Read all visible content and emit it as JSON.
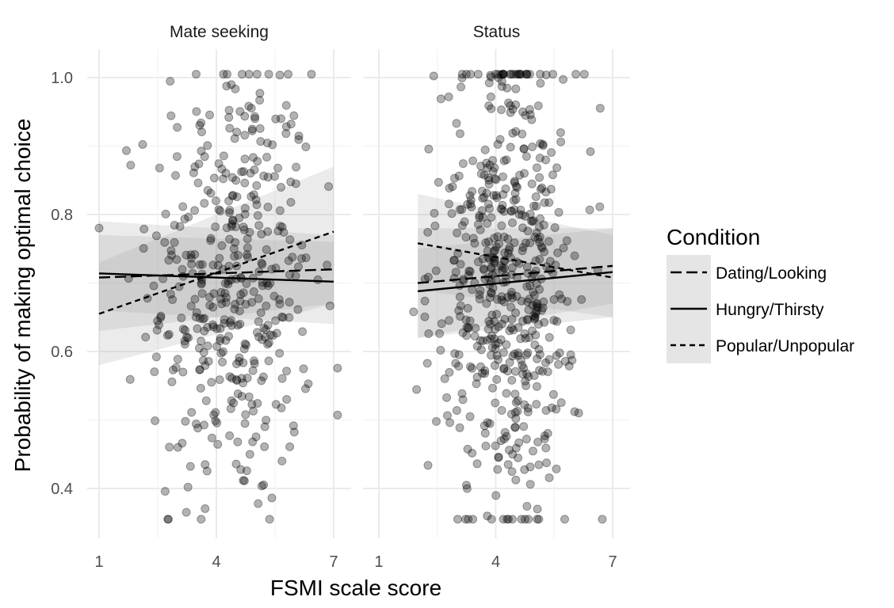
{
  "chart_data": {
    "type": "scatter",
    "xlabel": "FSMI scale score",
    "ylabel": "Probability of making optimal choice",
    "xlim": [
      0.95,
      7.45
    ],
    "ylim": [
      0.325,
      1.035
    ],
    "x_ticks": [
      "1",
      "4",
      "7"
    ],
    "x_tick_values": [
      1,
      4,
      7
    ],
    "y_ticks": [
      "0.4",
      "0.6",
      "0.8",
      "1.0"
    ],
    "y_tick_values": [
      0.4,
      0.6,
      0.8,
      1.0
    ],
    "grid": true,
    "legend": {
      "title": "Condition",
      "position": "right",
      "items": [
        {
          "label": "Dating/Looking",
          "linetype": "longdash"
        },
        {
          "label": "Hungry/Thirsty",
          "linetype": "solid"
        },
        {
          "label": "Popular/Unpopular",
          "linetype": "dashed"
        }
      ]
    },
    "colors": {
      "points": "#000000",
      "point_alpha": 0.3,
      "ribbon": "#999999",
      "grid": "#ebebeb"
    },
    "panels": [
      {
        "title": "Mate seeking",
        "n_points_generated": 420,
        "lines": [
          {
            "condition": "Dating/Looking",
            "x": [
              1,
              7
            ],
            "y": [
              0.708,
              0.72
            ],
            "ci_low": [
              0.63,
              0.67
            ],
            "ci_high": [
              0.79,
              0.77
            ]
          },
          {
            "condition": "Hungry/Thirsty",
            "x": [
              1,
              7
            ],
            "y": [
              0.714,
              0.702
            ],
            "ci_low": [
              0.66,
              0.64
            ],
            "ci_high": [
              0.77,
              0.76
            ]
          },
          {
            "condition": "Popular/Unpopular",
            "x": [
              1,
              7
            ],
            "y": [
              0.655,
              0.775
            ],
            "ci_low": [
              0.58,
              0.67
            ],
            "ci_high": [
              0.73,
              0.87
            ]
          }
        ]
      },
      {
        "title": "Status",
        "n_points_generated": 560,
        "lines": [
          {
            "condition": "Dating/Looking",
            "x": [
              2,
              7
            ],
            "y": [
              0.7,
              0.725
            ],
            "ci_low": [
              0.62,
              0.67
            ],
            "ci_high": [
              0.78,
              0.78
            ]
          },
          {
            "condition": "Hungry/Thirsty",
            "x": [
              2,
              7
            ],
            "y": [
              0.688,
              0.716
            ],
            "ci_low": [
              0.62,
              0.65
            ],
            "ci_high": [
              0.75,
              0.78
            ]
          },
          {
            "condition": "Popular/Unpopular",
            "x": [
              2,
              7
            ],
            "y": [
              0.758,
              0.708
            ],
            "ci_low": [
              0.69,
              0.65
            ],
            "ci_high": [
              0.83,
              0.77
            ]
          }
        ]
      }
    ]
  }
}
